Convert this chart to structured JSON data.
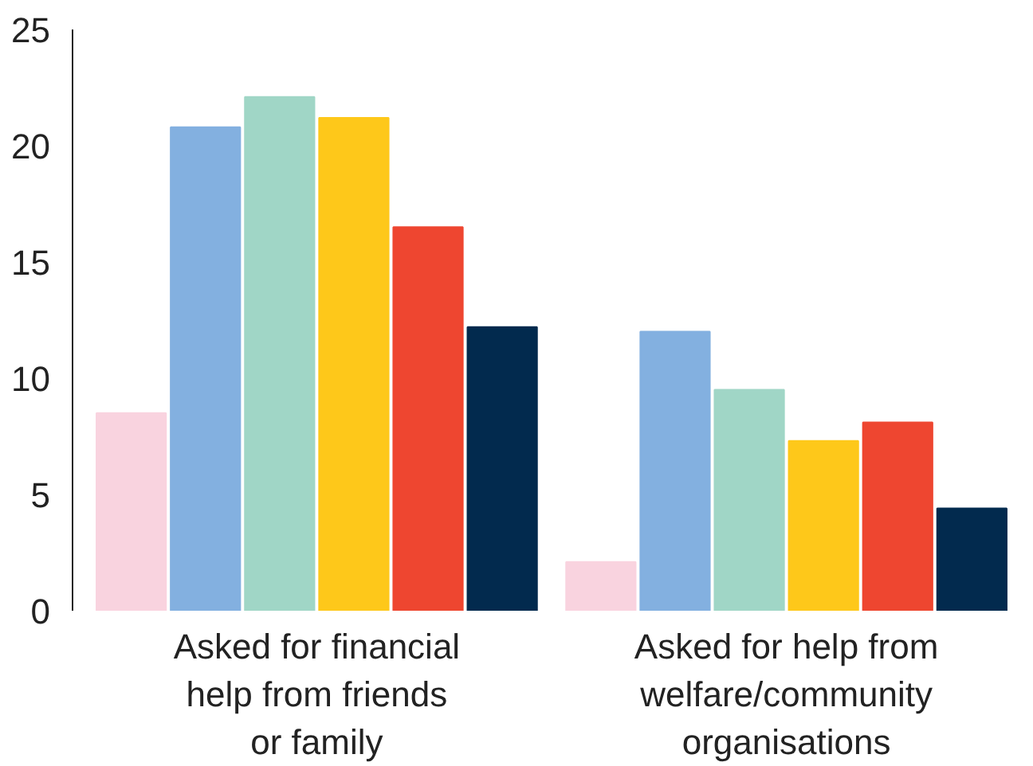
{
  "chart_data": {
    "type": "bar",
    "categories": [
      "Asked for financial help from friends or family",
      "Asked for help from welfare/community organisations"
    ],
    "series": [
      {
        "color": "#f9d3df",
        "values": [
          8.5,
          2.1
        ]
      },
      {
        "color": "#83b0e0",
        "values": [
          20.8,
          12.0
        ]
      },
      {
        "color": "#a0d6c6",
        "values": [
          22.1,
          9.5
        ]
      },
      {
        "color": "#fec81a",
        "values": [
          21.2,
          7.3
        ]
      },
      {
        "color": "#ee4630",
        "values": [
          16.5,
          8.1
        ]
      },
      {
        "color": "#022a4e",
        "values": [
          12.2,
          4.4
        ]
      }
    ],
    "ylim": [
      0,
      25
    ],
    "yticks": [
      0,
      5,
      10,
      15,
      20,
      25
    ],
    "grid": false
  }
}
